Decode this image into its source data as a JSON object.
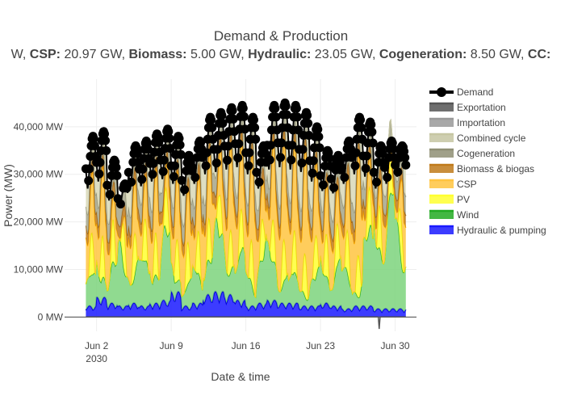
{
  "chart_data": {
    "type": "area",
    "title": "Demand & Production",
    "subtitle_parts": [
      {
        "bold": "",
        "text": "W, "
      },
      {
        "bold": "CSP:",
        "text": " 20.97 GW, "
      },
      {
        "bold": "Biomass:",
        "text": " 5.00 GW, "
      },
      {
        "bold": "Hydraulic:",
        "text": " 23.05 GW, "
      },
      {
        "bold": "Cogeneration:",
        "text": " 8.50 GW, "
      },
      {
        "bold": "CC:",
        "text": ""
      }
    ],
    "xlabel": "Date & time",
    "ylabel": "Power (MW)",
    "x_start": "2030-06-01",
    "x_end": "2030-06-30",
    "xlim": [
      "2030-05-30",
      "2030-07-02"
    ],
    "ylim": [
      -3000,
      50000
    ],
    "x_ticks": [
      {
        "date": "2030-06-02",
        "label": "Jun 2",
        "sublabel": "2030"
      },
      {
        "date": "2030-06-09",
        "label": "Jun 9",
        "sublabel": ""
      },
      {
        "date": "2030-06-16",
        "label": "Jun 16",
        "sublabel": ""
      },
      {
        "date": "2030-06-23",
        "label": "Jun 23",
        "sublabel": ""
      },
      {
        "date": "2030-06-30",
        "label": "Jun 30",
        "sublabel": ""
      }
    ],
    "y_ticks": [
      {
        "value": 0,
        "label": "0 MW"
      },
      {
        "value": 10000,
        "label": "10,000 MW"
      },
      {
        "value": 20000,
        "label": "20,000 MW"
      },
      {
        "value": 30000,
        "label": "30,000 MW"
      },
      {
        "value": 40000,
        "label": "40,000 MW"
      }
    ],
    "grid": true,
    "legend_position": "right",
    "series": [
      {
        "name": "Demand",
        "kind": "line-markers",
        "color": "#000000"
      },
      {
        "name": "Exportation",
        "kind": "area",
        "color": "#555555"
      },
      {
        "name": "Importation",
        "kind": "area",
        "color": "#999999"
      },
      {
        "name": "Combined cycle",
        "kind": "area",
        "color": "#c6c6a2"
      },
      {
        "name": "Cogeneration",
        "kind": "area",
        "color": "#8f8f74"
      },
      {
        "name": "Biomass & biogas",
        "kind": "area",
        "color": "#c07a1a"
      },
      {
        "name": "CSP",
        "kind": "area",
        "color": "#ffc440"
      },
      {
        "name": "PV",
        "kind": "area",
        "color": "#ffff30"
      },
      {
        "name": "Wind",
        "kind": "area",
        "color": "#22aa22"
      },
      {
        "name": "Hydraulic & pumping",
        "kind": "area",
        "color": "#1a1aff"
      }
    ],
    "daily": {
      "demand_peak": [
        38000,
        39000,
        33000,
        28000,
        36000,
        37000,
        38500,
        39500,
        38000,
        34000,
        37000,
        42000,
        43000,
        44000,
        44500,
        42000,
        36000,
        44500,
        45000,
        44500,
        43000,
        40000,
        35000,
        34000,
        37000,
        42000,
        41000,
        36000,
        37000,
        36000
      ],
      "demand_trough": [
        27000,
        28500,
        24500,
        23000,
        27000,
        27500,
        28500,
        29000,
        28000,
        25500,
        28000,
        30000,
        30500,
        31000,
        31500,
        30000,
        27000,
        31000,
        31500,
        31000,
        30500,
        28500,
        26500,
        26000,
        28000,
        30000,
        29500,
        27000,
        28000,
        29500
      ],
      "wind": [
        6500,
        8500,
        9000,
        12500,
        10500,
        9500,
        12000,
        14500,
        6000,
        5500,
        7500,
        13000,
        13500,
        12500,
        10000,
        8000,
        13000,
        10500,
        8500,
        6000,
        5500,
        7000,
        9000,
        11000,
        8000,
        6000,
        15000,
        25000,
        24000,
        18000
      ],
      "hydro": [
        2000,
        3500,
        2500,
        2000,
        2500,
        2000,
        2500,
        3000,
        4500,
        2000,
        2500,
        4000,
        4500,
        4000,
        3000,
        2000,
        2500,
        3000,
        2500,
        2500,
        2000,
        2000,
        2500,
        2000,
        1500,
        2000,
        2000,
        1500,
        1500,
        1500
      ],
      "cogeneration": [
        4000,
        4000,
        4000,
        4000,
        4000,
        4000,
        4000,
        4000,
        4000,
        4000,
        4000,
        4000,
        4000,
        4000,
        4000,
        4000,
        4000,
        4000,
        4000,
        4000,
        4000,
        4000,
        4000,
        4000,
        4000,
        4000,
        4000,
        4000,
        4000,
        4000
      ],
      "biomass": [
        2500,
        2500,
        2500,
        2500,
        2500,
        2500,
        2500,
        2500,
        2500,
        2500,
        2500,
        2500,
        2500,
        2500,
        2500,
        2500,
        2500,
        2500,
        2500,
        2500,
        2500,
        2500,
        2500,
        2500,
        2500,
        2500,
        2500,
        2500,
        2500,
        2500
      ],
      "exportation_dip": [
        0,
        0,
        0,
        0,
        0,
        0,
        0,
        0,
        0,
        0,
        0,
        0,
        0,
        0,
        0,
        0,
        0,
        0,
        0,
        0,
        0,
        0,
        0,
        0,
        0,
        0,
        0,
        -2500,
        0,
        0
      ]
    }
  }
}
